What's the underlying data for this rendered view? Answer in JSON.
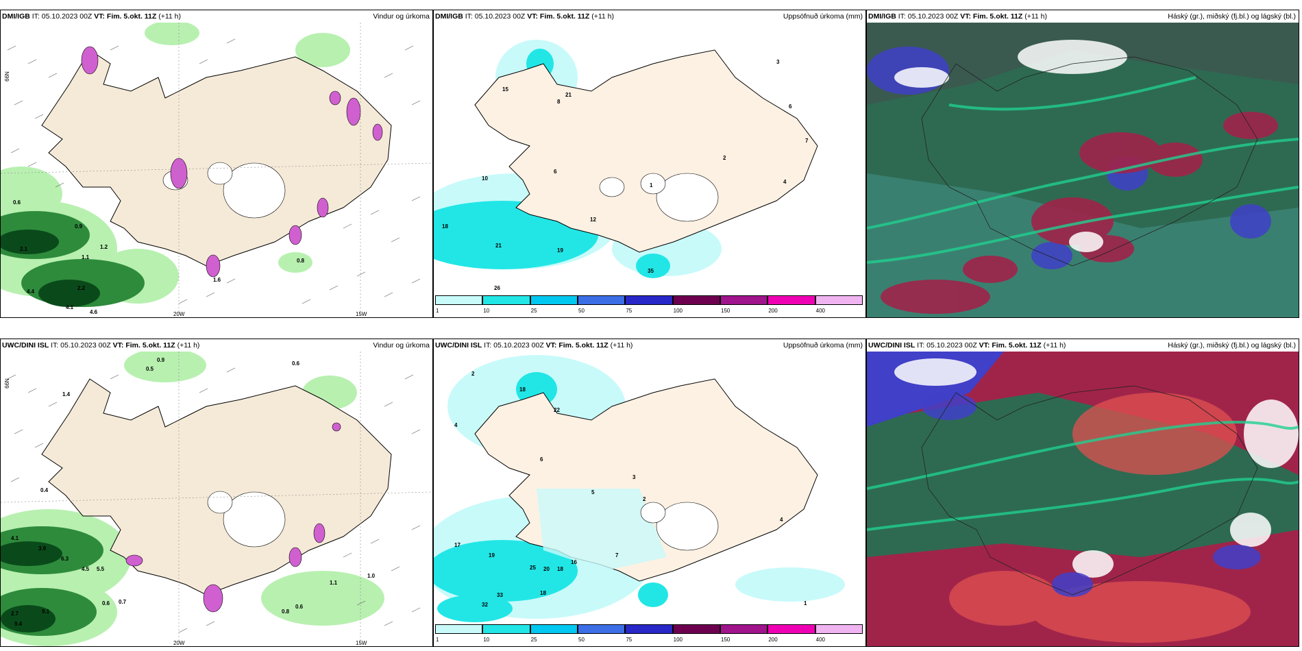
{
  "panels": {
    "p1": {
      "source": "DMI/IGB",
      "init": "IT: 05.10.2023 00Z",
      "valid": "VT: Fim. 5.okt. 11Z",
      "lead": "(+11 h)",
      "title": "Vindur og úrkoma"
    },
    "p2": {
      "source": "DMI/IGB",
      "init": "IT: 05.10.2023 00Z",
      "valid": "VT: Fim. 5.okt. 11Z",
      "lead": "(+11 h)",
      "title": "Uppsöfnuð úrkoma (mm)"
    },
    "p3": {
      "source": "DMI/IGB",
      "init": "IT: 05.10.2023 00Z",
      "valid": "VT: Fim. 5.okt. 11Z",
      "lead": "(+11 h)",
      "title": "Háský (gr.), miðský (fj.bl.) og lágský (bl.)"
    },
    "p4": {
      "source": "UWC/DINI ISL",
      "init": "IT: 05.10.2023 00Z",
      "valid": "VT: Fim. 5.okt. 11Z",
      "lead": "(+11 h)",
      "title": "Vindur og úrkoma"
    },
    "p5": {
      "source": "UWC/DINI ISL",
      "init": "IT: 05.10.2023 00Z",
      "valid": "VT: Fim. 5.okt. 11Z",
      "lead": "(+11 h)",
      "title": "Uppsöfnuð úrkoma (mm)"
    },
    "p6": {
      "source": "UWC/DINI ISL",
      "init": "IT: 05.10.2023 00Z",
      "valid": "VT: Fim. 5.okt. 11Z",
      "lead": "(+11 h)",
      "title": "Háský (gr.), miðský (fj.bl.) og lágský (bl.)"
    }
  },
  "axes": {
    "lat": "66N",
    "lon_w": "20W",
    "lon_e": "15W"
  },
  "colorbar": {
    "labels": [
      "1",
      "10",
      "25",
      "50",
      "75",
      "100",
      "150",
      "200",
      "400"
    ],
    "colors": [
      "#c8fafa",
      "#22e6e6",
      "#00c8f0",
      "#3c6ee6",
      "#2828c8",
      "#6e0050",
      "#a0148c",
      "#f000b4",
      "#f0b4f0"
    ]
  },
  "map_values": {
    "p1": [
      "0.6",
      "0.9",
      "2.1",
      "1.1",
      "1.2",
      "2.2",
      "4.4",
      "4.1",
      "4.6",
      "0.8",
      "1.6"
    ],
    "p2": [
      "18",
      "21",
      "26",
      "19",
      "12",
      "15",
      "6",
      "2",
      "1",
      "4",
      "6",
      "7",
      "3",
      "8",
      "21",
      "10",
      "35"
    ],
    "p4": [
      "0.9",
      "0.5",
      "0.6",
      "1.4",
      "0.4",
      "4.1",
      "3.9",
      "6.3",
      "4.5",
      "5.5",
      "2.7",
      "9.1",
      "9.4",
      "0.6",
      "0.7",
      "0.8",
      "0.6",
      "1.1",
      "1.0"
    ],
    "p5": [
      "2",
      "4",
      "18",
      "17",
      "19",
      "25",
      "20",
      "18",
      "33",
      "32",
      "18",
      "16",
      "6",
      "5",
      "3",
      "2",
      "7",
      "4",
      "1",
      "22"
    ]
  },
  "colors": {
    "land": "#f5ead8",
    "wind_sea": "#ffffff",
    "precip_light": "#a8f0a0",
    "precip_mid": "#2e8b3c",
    "precip_dark": "#0a4a1a",
    "cloud_high": "#2e6a52",
    "cloud_mid": "#a0244a",
    "cloud_low": "#4040c8",
    "cloud_sea": "#3a8070"
  }
}
